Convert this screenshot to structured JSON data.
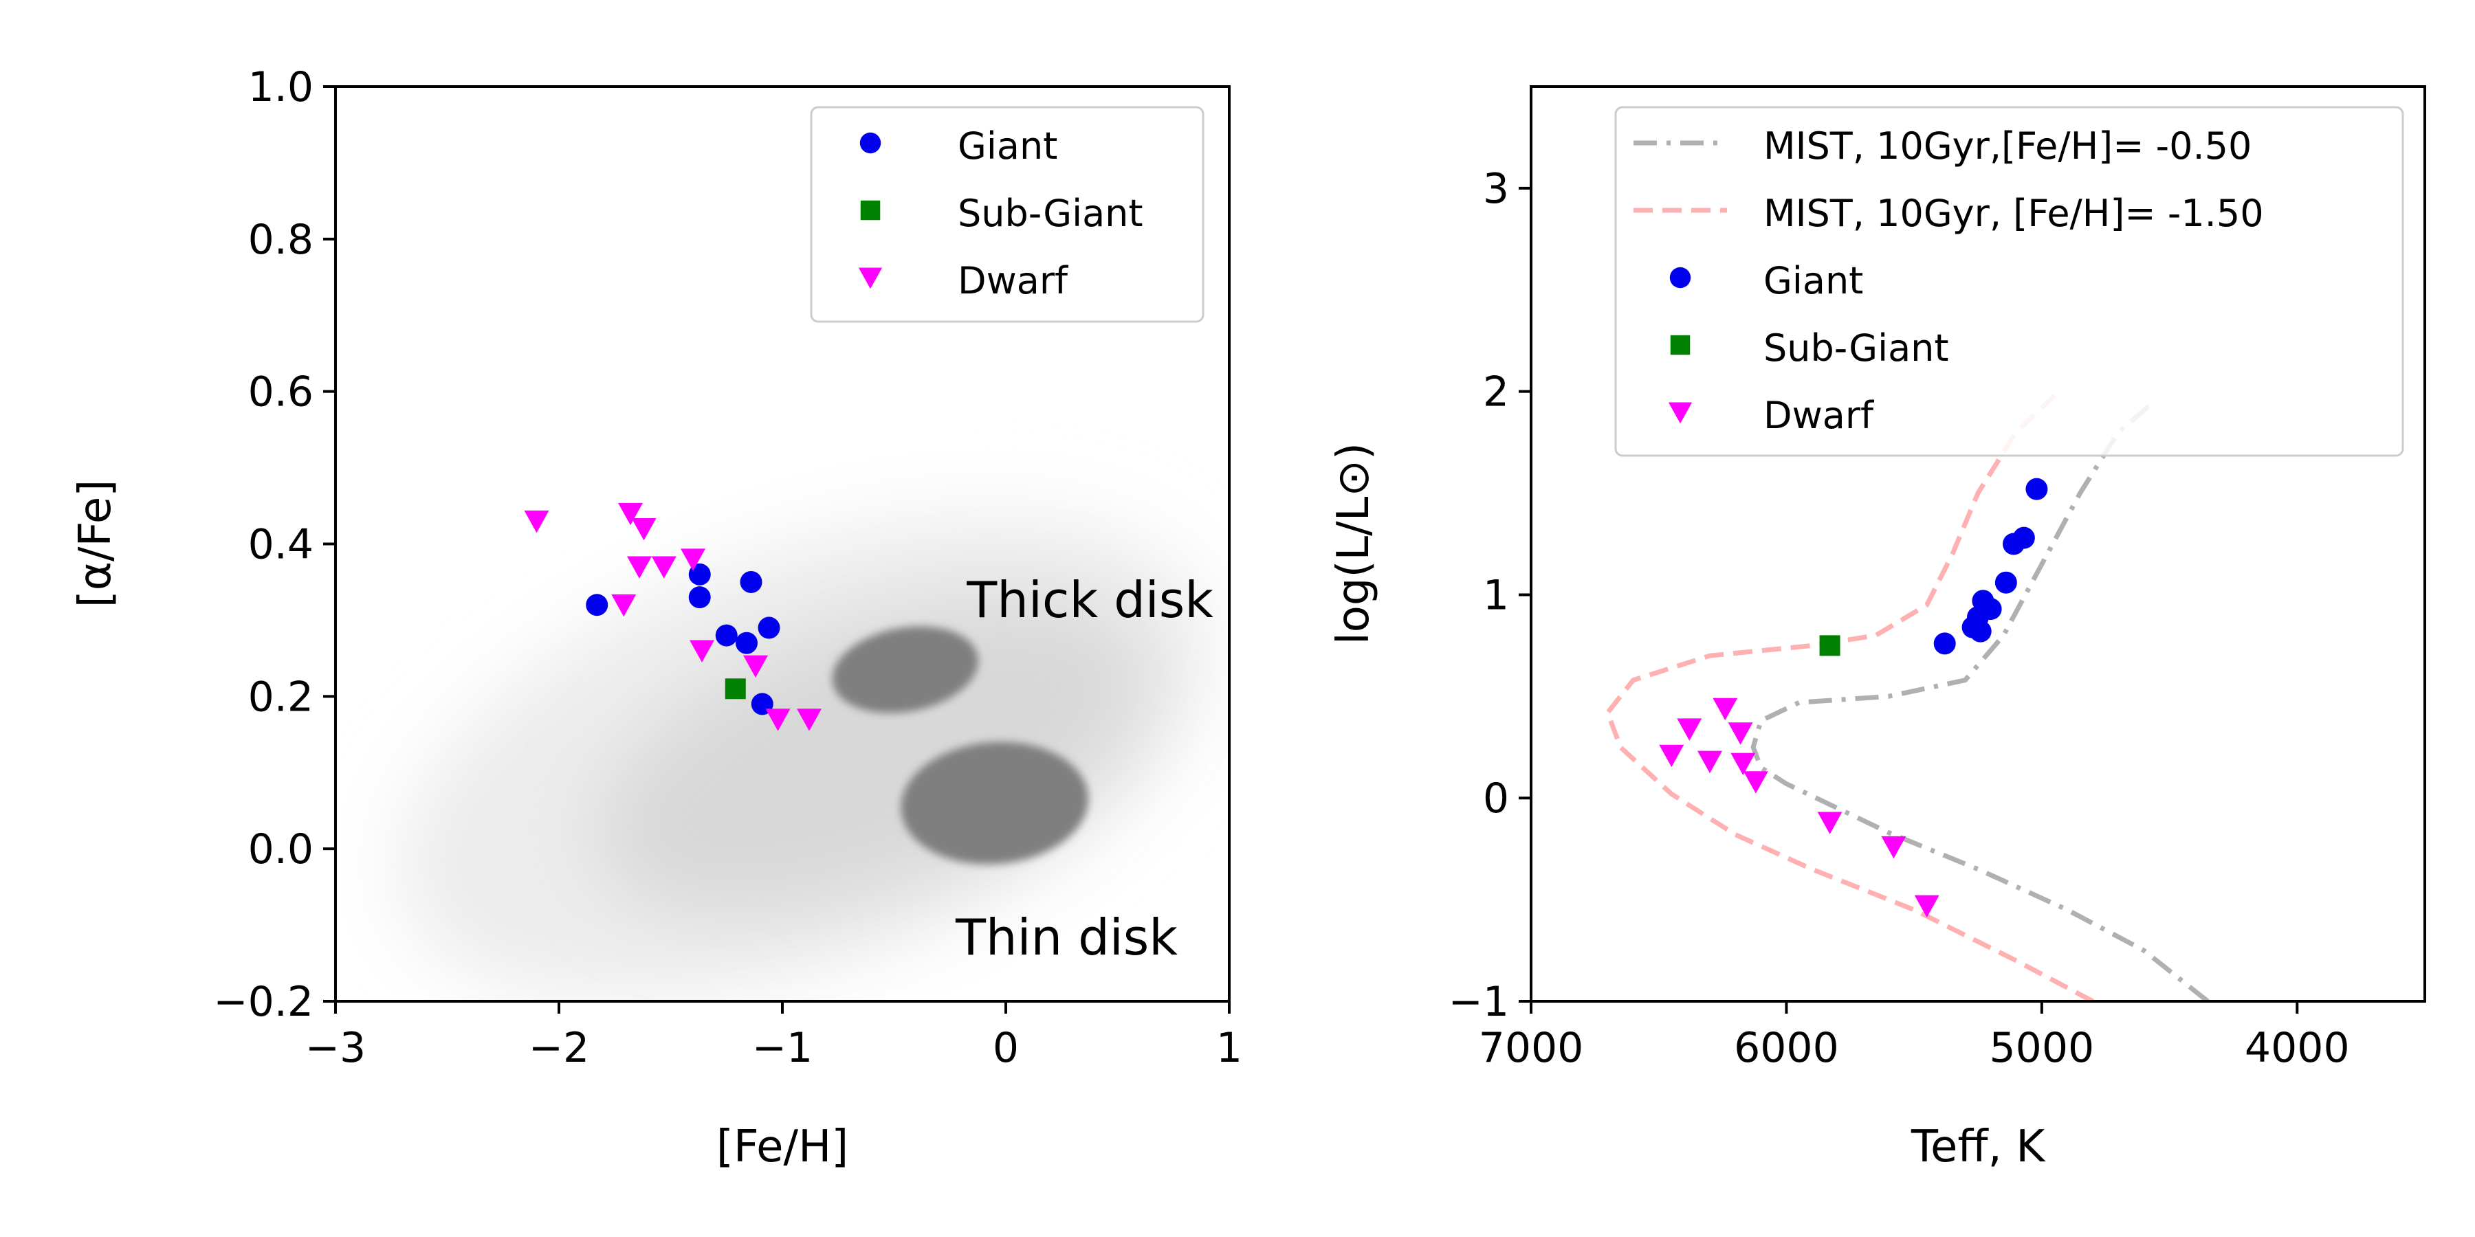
{
  "chart_data": [
    {
      "type": "scatter",
      "xlabel": "[Fe/H]",
      "ylabel": "[α/Fe]",
      "xlim": [
        -3,
        1
      ],
      "ylim": [
        -0.2,
        1.0
      ],
      "xticks": [
        -3,
        -2,
        -1,
        0,
        1
      ],
      "xtick_labels": [
        "−3",
        "−2",
        "−1",
        "0",
        "1"
      ],
      "yticks": [
        -0.2,
        0.0,
        0.2,
        0.4,
        0.6,
        0.8,
        1.0
      ],
      "ytick_labels": [
        "−0.2",
        "0.0",
        "0.2",
        "0.4",
        "0.6",
        "0.8",
        "1.0"
      ],
      "grid": false,
      "legend_position": "top-right",
      "annotations": [
        {
          "text": "Thick disk",
          "x": 0.3,
          "y": 0.31
        },
        {
          "text": "Thin disk",
          "x": 0.2,
          "y": -0.12
        }
      ],
      "background_density": [
        {
          "description_free": true,
          "cx": -0.45,
          "cy": 0.235,
          "rx": 0.33,
          "ry": 0.055,
          "tilt": -0.18
        },
        {
          "cx": -0.05,
          "cy": 0.06,
          "rx": 0.42,
          "ry": 0.08,
          "tilt": -0.08
        }
      ],
      "series": [
        {
          "name": "Giant",
          "marker": "circle",
          "color": "#0000ee",
          "points": [
            {
              "x": -1.83,
              "y": 0.32
            },
            {
              "x": -1.37,
              "y": 0.36
            },
            {
              "x": -1.37,
              "y": 0.33
            },
            {
              "x": -1.14,
              "y": 0.35
            },
            {
              "x": -1.25,
              "y": 0.28
            },
            {
              "x": -1.16,
              "y": 0.27
            },
            {
              "x": -1.06,
              "y": 0.29
            },
            {
              "x": -1.09,
              "y": 0.19
            }
          ]
        },
        {
          "name": "Sub-Giant",
          "marker": "square",
          "color": "#008000",
          "points": [
            {
              "x": -1.21,
              "y": 0.21
            }
          ]
        },
        {
          "name": "Dwarf",
          "marker": "triangle-down",
          "color": "#ff00ff",
          "points": [
            {
              "x": -2.1,
              "y": 0.43
            },
            {
              "x": -1.68,
              "y": 0.44
            },
            {
              "x": -1.62,
              "y": 0.42
            },
            {
              "x": -1.64,
              "y": 0.37
            },
            {
              "x": -1.53,
              "y": 0.37
            },
            {
              "x": -1.4,
              "y": 0.38
            },
            {
              "x": -1.71,
              "y": 0.32
            },
            {
              "x": -1.36,
              "y": 0.26
            },
            {
              "x": -1.12,
              "y": 0.24
            },
            {
              "x": -1.02,
              "y": 0.17
            },
            {
              "x": -0.88,
              "y": 0.17
            }
          ]
        }
      ]
    },
    {
      "type": "scatter",
      "xlabel": "Teff, K",
      "ylabel": "log(L/L⊙)",
      "xlim": [
        7000,
        3500
      ],
      "ylim": [
        -1,
        3.5
      ],
      "xticks": [
        7000,
        6000,
        5000,
        4000
      ],
      "xtick_labels": [
        "7000",
        "6000",
        "5000",
        "4000"
      ],
      "yticks": [
        -1,
        0,
        1,
        2,
        3
      ],
      "ytick_labels": [
        "−1",
        "0",
        "1",
        "2",
        "3"
      ],
      "grid": false,
      "legend_position": "top-right",
      "lines": [
        {
          "name": "MIST, 10Gyr,[Fe/H]= -0.50",
          "style": "dash-dot",
          "color": "#b0b0b0",
          "points": [
            {
              "x": 4350,
              "y": -1.0
            },
            {
              "x": 4600,
              "y": -0.75
            },
            {
              "x": 4900,
              "y": -0.55
            },
            {
              "x": 5250,
              "y": -0.35
            },
            {
              "x": 5600,
              "y": -0.17
            },
            {
              "x": 5850,
              "y": -0.02
            },
            {
              "x": 6000,
              "y": 0.07
            },
            {
              "x": 6100,
              "y": 0.15
            },
            {
              "x": 6130,
              "y": 0.25
            },
            {
              "x": 6100,
              "y": 0.38
            },
            {
              "x": 5950,
              "y": 0.47
            },
            {
              "x": 5600,
              "y": 0.5
            },
            {
              "x": 5300,
              "y": 0.58
            },
            {
              "x": 5150,
              "y": 0.8
            },
            {
              "x": 5000,
              "y": 1.15
            },
            {
              "x": 4850,
              "y": 1.5
            },
            {
              "x": 4700,
              "y": 1.8
            },
            {
              "x": 4560,
              "y": 1.95
            }
          ]
        },
        {
          "name": "MIST, 10Gyr, [Fe/H]= -1.50",
          "style": "dashed",
          "color": "#ffb0b0",
          "points": [
            {
              "x": 4800,
              "y": -1.0
            },
            {
              "x": 5100,
              "y": -0.8
            },
            {
              "x": 5500,
              "y": -0.55
            },
            {
              "x": 5900,
              "y": -0.35
            },
            {
              "x": 6200,
              "y": -0.18
            },
            {
              "x": 6450,
              "y": 0.02
            },
            {
              "x": 6650,
              "y": 0.25
            },
            {
              "x": 6700,
              "y": 0.42
            },
            {
              "x": 6600,
              "y": 0.58
            },
            {
              "x": 6300,
              "y": 0.7
            },
            {
              "x": 5900,
              "y": 0.75
            },
            {
              "x": 5650,
              "y": 0.8
            },
            {
              "x": 5450,
              "y": 0.95
            },
            {
              "x": 5350,
              "y": 1.2
            },
            {
              "x": 5250,
              "y": 1.5
            },
            {
              "x": 5100,
              "y": 1.8
            },
            {
              "x": 4950,
              "y": 1.98
            }
          ]
        }
      ],
      "series": [
        {
          "name": "Giant",
          "marker": "circle",
          "color": "#0000ee",
          "points": [
            {
              "x": 5020,
              "y": 1.52
            },
            {
              "x": 5070,
              "y": 1.28
            },
            {
              "x": 5110,
              "y": 1.25
            },
            {
              "x": 5140,
              "y": 1.06
            },
            {
              "x": 5200,
              "y": 0.93
            },
            {
              "x": 5230,
              "y": 0.97
            },
            {
              "x": 5250,
              "y": 0.89
            },
            {
              "x": 5270,
              "y": 0.84
            },
            {
              "x": 5240,
              "y": 0.82
            },
            {
              "x": 5380,
              "y": 0.76
            }
          ]
        },
        {
          "name": "Sub-Giant",
          "marker": "square",
          "color": "#008000",
          "points": [
            {
              "x": 5830,
              "y": 0.75
            }
          ]
        },
        {
          "name": "Dwarf",
          "marker": "triangle-down",
          "color": "#ff00ff",
          "points": [
            {
              "x": 6240,
              "y": 0.44
            },
            {
              "x": 6380,
              "y": 0.34
            },
            {
              "x": 6180,
              "y": 0.32
            },
            {
              "x": 6450,
              "y": 0.21
            },
            {
              "x": 6300,
              "y": 0.18
            },
            {
              "x": 6170,
              "y": 0.17
            },
            {
              "x": 6120,
              "y": 0.08
            },
            {
              "x": 5830,
              "y": -0.12
            },
            {
              "x": 5580,
              "y": -0.24
            },
            {
              "x": 5450,
              "y": -0.53
            }
          ]
        }
      ]
    }
  ]
}
